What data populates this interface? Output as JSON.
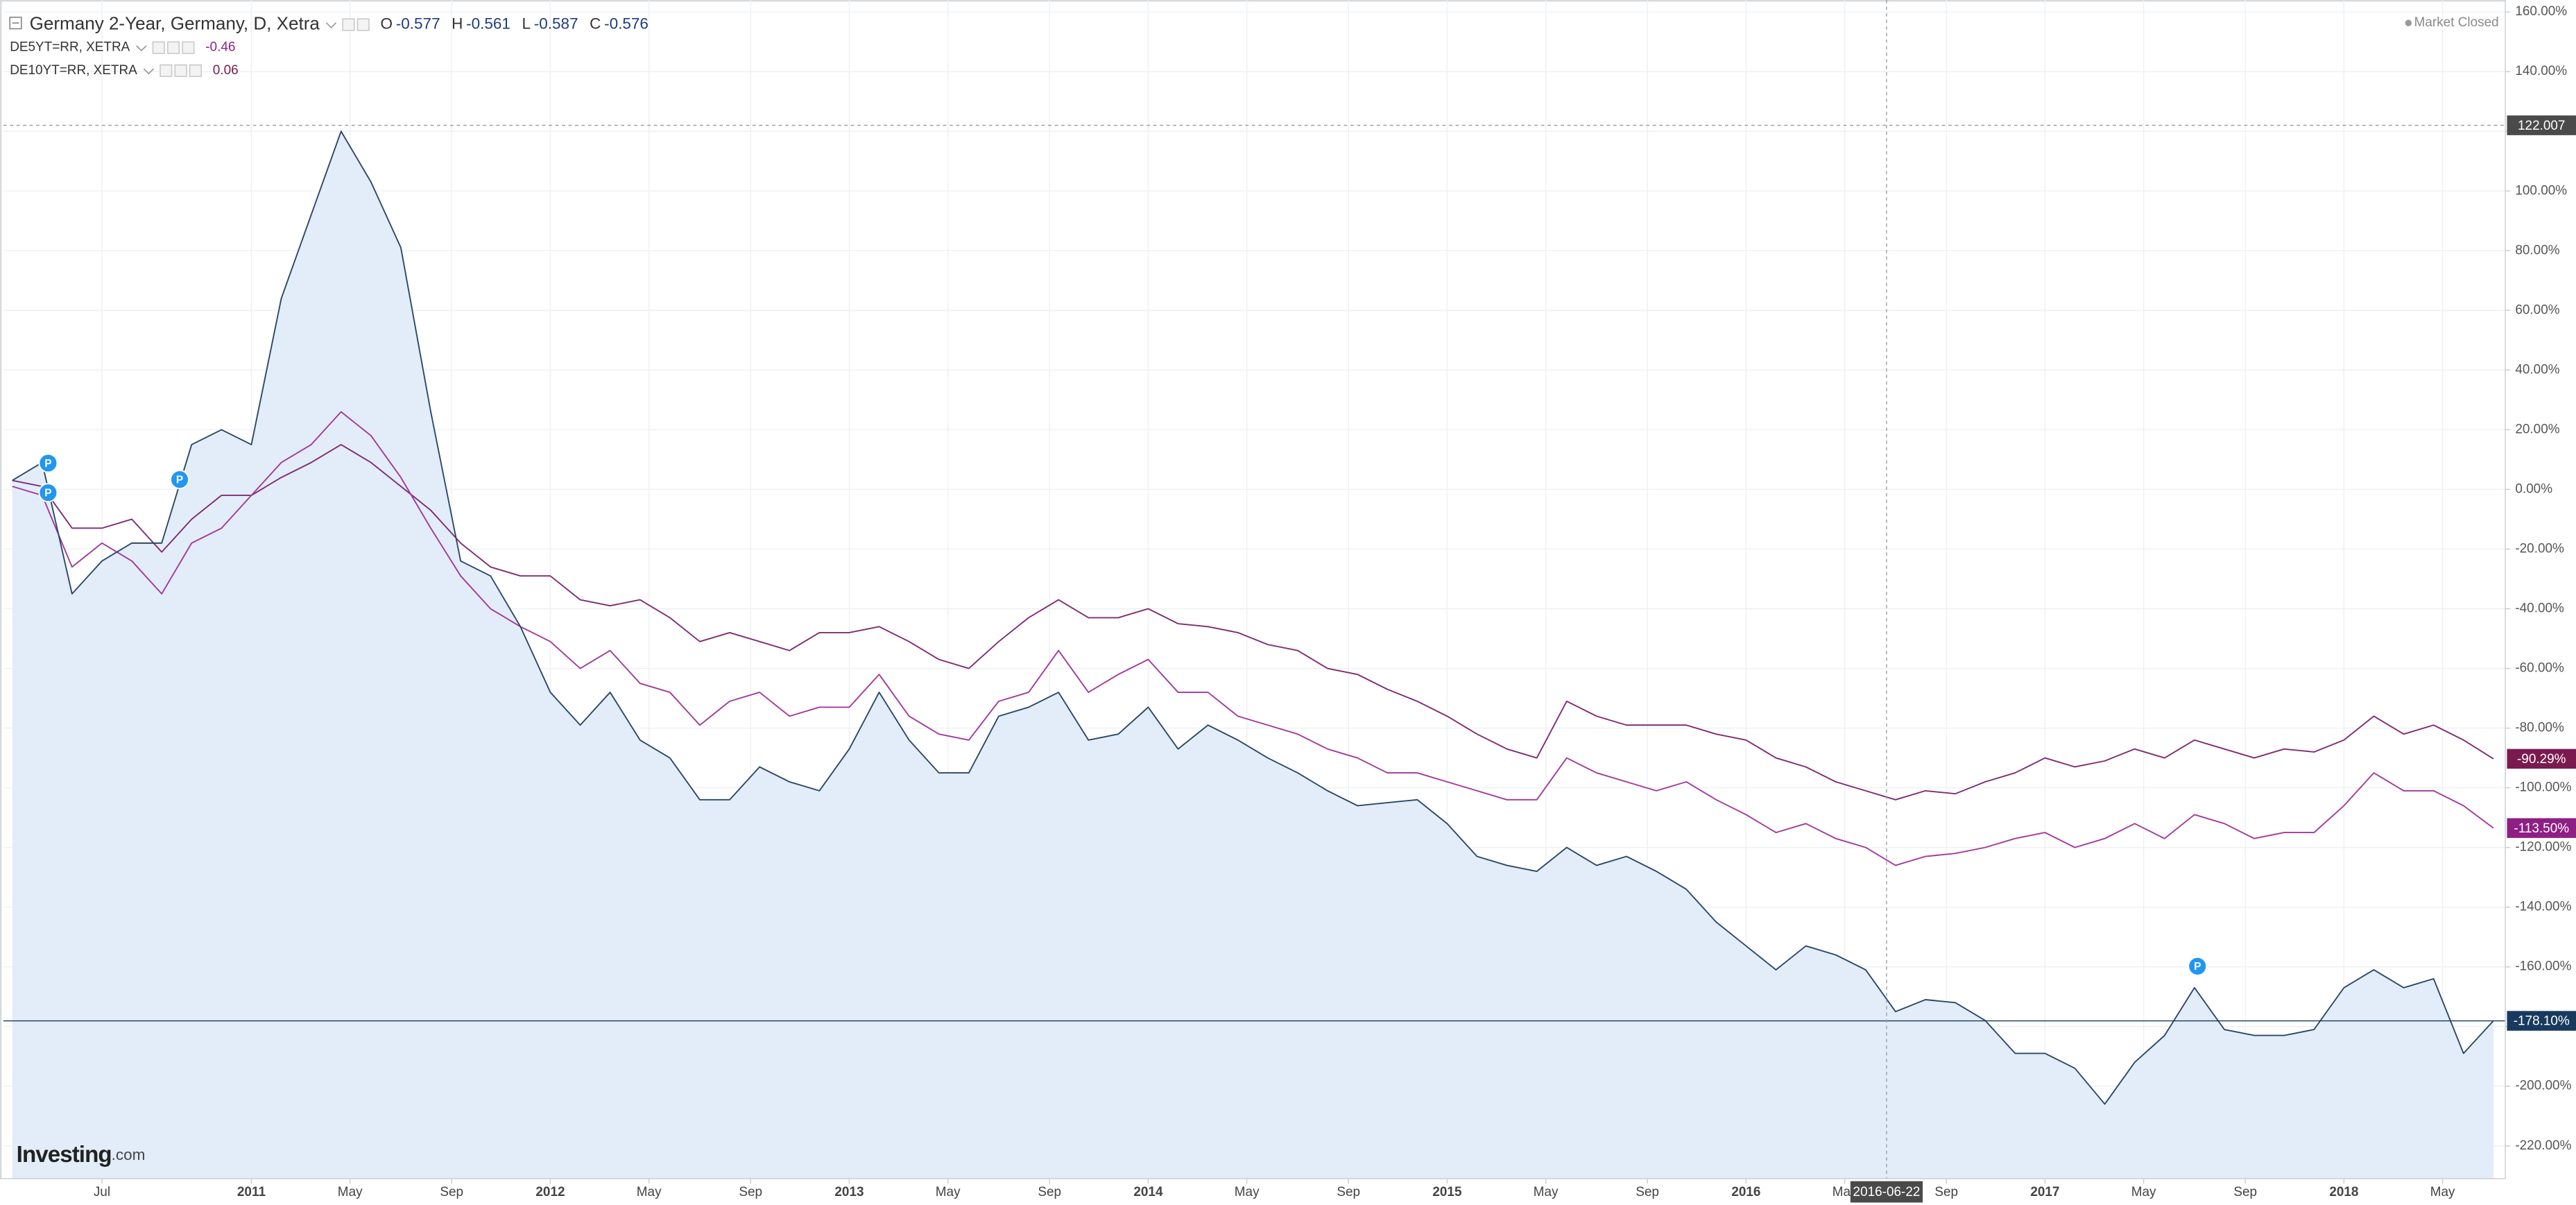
{
  "chart_data": {
    "type": "line",
    "status": "Market Closed",
    "branding": {
      "logo": "Investing",
      "domain": ".com"
    },
    "ohlc": [
      {
        "label": "O",
        "value": -0.577
      },
      {
        "label": "H",
        "value": -0.561
      },
      {
        "label": "L",
        "value": -0.587
      },
      {
        "label": "C",
        "value": -0.576
      }
    ],
    "x": [
      2010.2,
      2010.3,
      2010.4,
      2010.5,
      2010.6,
      2010.7,
      2010.8,
      2010.9,
      2011.0,
      2011.1,
      2011.2,
      2011.3,
      2011.4,
      2011.5,
      2011.6,
      2011.7,
      2011.8,
      2011.9,
      2012.0,
      2012.1,
      2012.2,
      2012.3,
      2012.4,
      2012.5,
      2012.6,
      2012.7,
      2012.8,
      2012.9,
      2013.0,
      2013.1,
      2013.2,
      2013.3,
      2013.4,
      2013.5,
      2013.6,
      2013.7,
      2013.8,
      2013.9,
      2014.0,
      2014.1,
      2014.2,
      2014.3,
      2014.4,
      2014.5,
      2014.6,
      2014.7,
      2014.8,
      2014.9,
      2015.0,
      2015.1,
      2015.2,
      2015.3,
      2015.4,
      2015.5,
      2015.6,
      2015.7,
      2015.8,
      2015.9,
      2016.0,
      2016.1,
      2016.2,
      2016.3,
      2016.4,
      2016.5,
      2016.6,
      2016.7,
      2016.8,
      2016.9,
      2017.0,
      2017.1,
      2017.2,
      2017.3,
      2017.4,
      2017.5,
      2017.6,
      2017.7,
      2017.8,
      2017.9,
      2018.0,
      2018.1,
      2018.2,
      2018.3,
      2018.4,
      2018.5
    ],
    "series": [
      {
        "name": "Germany 2-Year, Germany, D, Xetra",
        "color": "#2c4866",
        "area_color": "#e2edf9",
        "label_color": "#173a5e",
        "end_label": "-178.10%",
        "price_line": true,
        "values": [
          3,
          9,
          -35,
          -24,
          -18,
          -18,
          15,
          20,
          15,
          64,
          92,
          120,
          103,
          81,
          26,
          -24,
          -29,
          -46,
          -68,
          -79,
          -68,
          -84,
          -90,
          -104,
          -104,
          -93,
          -98,
          -101,
          -87,
          -68,
          -84,
          -95,
          -95,
          -76,
          -73,
          -68,
          -84,
          -82,
          -73,
          -87,
          -79,
          -84,
          -90,
          -95,
          -101,
          -106,
          -105,
          -104,
          -112,
          -123,
          -126,
          -128,
          -120,
          -126,
          -123,
          -128,
          -134,
          -145,
          -153,
          -161,
          -153,
          -156,
          -161,
          -175,
          -171,
          -172,
          -178,
          -189,
          -189,
          -194,
          -206,
          -192,
          -183,
          -167,
          -181,
          -183,
          -183,
          -181,
          -167,
          -161,
          -167,
          -164,
          -189,
          -178.1
        ]
      },
      {
        "name": "DE5YT=RR, XETRA",
        "last": -0.46,
        "color": "#a3399b",
        "label_color": "#8e1f83",
        "end_label": "-113.50%",
        "values": [
          1,
          -2,
          -26,
          -18,
          -24,
          -35,
          -18,
          -13,
          -2,
          9,
          15,
          26,
          18,
          4,
          -13,
          -29,
          -40,
          -46,
          -51,
          -60,
          -54,
          -65,
          -68,
          -79,
          -71,
          -68,
          -76,
          -73,
          -73,
          -62,
          -76,
          -82,
          -84,
          -71,
          -68,
          -54,
          -68,
          -62,
          -57,
          -68,
          -68,
          -76,
          -79,
          -82,
          -87,
          -90,
          -95,
          -95,
          -98,
          -101,
          -104,
          -104,
          -90,
          -95,
          -98,
          -101,
          -98,
          -104,
          -109,
          -115,
          -112,
          -117,
          -120,
          -126,
          -123,
          -122,
          -120,
          -117,
          -115,
          -120,
          -117,
          -112,
          -117,
          -109,
          -112,
          -117,
          -115,
          -115,
          -106,
          -95,
          -101,
          -101,
          -106,
          -113.5
        ]
      },
      {
        "name": "DE10YT=RR, XETRA",
        "last": 0.06,
        "color": "#7f2c72",
        "label_color": "#7a1b4f",
        "end_label": "-90.29%",
        "values": [
          3,
          1,
          -13,
          -13,
          -10,
          -21,
          -10,
          -2,
          -2,
          4,
          9,
          15,
          9,
          1,
          -7,
          -18,
          -26,
          -29,
          -29,
          -37,
          -39,
          -37,
          -43,
          -51,
          -48,
          -51,
          -54,
          -48,
          -48,
          -46,
          -51,
          -57,
          -60,
          -51,
          -43,
          -37,
          -43,
          -43,
          -40,
          -45,
          -46,
          -48,
          -52,
          -54,
          -60,
          -62,
          -67,
          -71,
          -76,
          -82,
          -87,
          -90,
          -71,
          -76,
          -79,
          -79,
          -79,
          -82,
          -84,
          -90,
          -93,
          -98,
          -101,
          -104,
          -101,
          -102,
          -98,
          -95,
          -90,
          -93,
          -91,
          -87,
          -90,
          -84,
          -87,
          -90,
          -87,
          -88,
          -84,
          -76,
          -82,
          -79,
          -84,
          -90.29
        ]
      }
    ],
    "markers": [
      {
        "x": 2010.32,
        "y": 8.8,
        "label": "P"
      },
      {
        "x": 2010.32,
        "y": -1.1,
        "label": "P"
      },
      {
        "x": 2010.76,
        "y": 3.3,
        "label": "P"
      },
      {
        "x": 2017.51,
        "y": -159.8,
        "label": "P"
      }
    ],
    "crosshair": {
      "x": 2016.47,
      "x_label": "2016-06-22",
      "y": 122.007
    },
    "xlim": [
      2010.17,
      2018.54
    ],
    "xticks": [
      {
        "value": 2010.5,
        "label": "Jul"
      },
      2011,
      {
        "value": 2011.33,
        "label": "May"
      },
      {
        "value": 2011.67,
        "label": "Sep"
      },
      2012,
      {
        "value": 2012.33,
        "label": "May"
      },
      {
        "value": 2012.67,
        "label": "Sep"
      },
      2013,
      {
        "value": 2013.33,
        "label": "May"
      },
      {
        "value": 2013.67,
        "label": "Sep"
      },
      2014,
      {
        "value": 2014.33,
        "label": "May"
      },
      {
        "value": 2014.67,
        "label": "Sep"
      },
      2015,
      {
        "value": 2015.33,
        "label": "May"
      },
      {
        "value": 2015.67,
        "label": "Sep"
      },
      2016,
      {
        "value": 2016.33,
        "label": "May"
      },
      {
        "value": 2016.67,
        "label": "Sep"
      },
      2017,
      {
        "value": 2017.33,
        "label": "May"
      },
      {
        "value": 2017.67,
        "label": "Sep"
      },
      2018,
      {
        "value": 2018.33,
        "label": "May"
      }
    ],
    "ylim": [
      -231,
      164
    ],
    "yticks": [
      {
        "value": 160,
        "label": "160.00%"
      },
      {
        "value": 140,
        "label": "140.00%"
      },
      {
        "value": 120,
        "label": "120.00%"
      },
      {
        "value": 100,
        "label": "100.00%"
      },
      {
        "value": 80,
        "label": "80.00%"
      },
      {
        "value": 60,
        "label": "60.00%"
      },
      {
        "value": 40,
        "label": "40.00%"
      },
      {
        "value": 20,
        "label": "20.00%"
      },
      {
        "value": 0,
        "label": "0.00%"
      },
      {
        "value": -20,
        "label": "-20.00%"
      },
      {
        "value": -40,
        "label": "-40.00%"
      },
      {
        "value": -60,
        "label": "-60.00%"
      },
      {
        "value": -80,
        "label": "-80.00%"
      },
      {
        "value": -100,
        "label": "-100.00%"
      },
      {
        "value": -120,
        "label": "-120.00%"
      },
      {
        "value": -140,
        "label": "-140.00%"
      },
      {
        "value": -160,
        "label": "-160.00%"
      },
      {
        "value": -180,
        "label": "-180.00%"
      },
      {
        "value": -200,
        "label": "-200.00%"
      },
      {
        "value": -220,
        "label": "-220.00%"
      }
    ],
    "grid": true
  }
}
